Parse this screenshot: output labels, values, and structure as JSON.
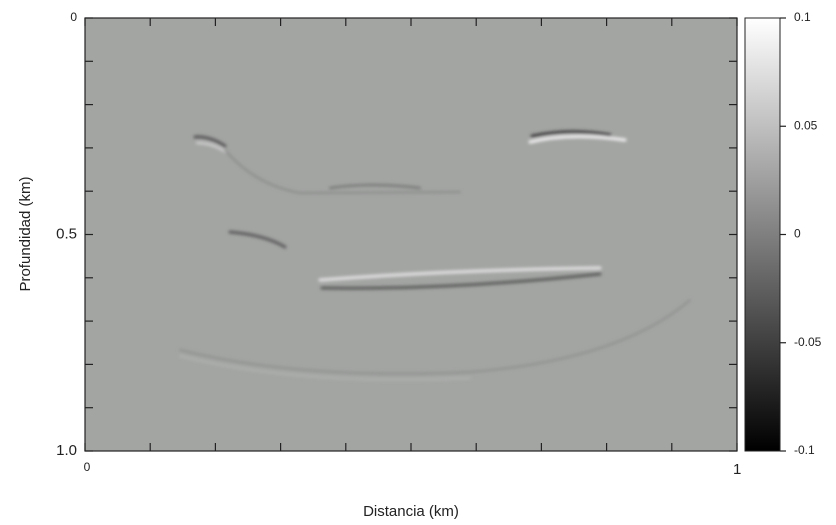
{
  "chart_data": {
    "type": "heatmap",
    "xlabel": "Distancia (km)",
    "ylabel": "Profundidad (km)",
    "xlim": [
      0,
      1
    ],
    "ylim": [
      1,
      0
    ],
    "xticks": [
      0,
      1
    ],
    "yticks": [
      0,
      0.5,
      {
        "value": 1,
        "label": "1.0"
      }
    ],
    "xticks_minor": [
      0.1,
      0.2,
      0.3,
      0.4,
      0.5,
      0.6,
      0.7,
      0.8,
      0.9
    ],
    "yticks_minor": [
      0.1,
      0.2,
      0.3,
      0.4,
      0.6,
      0.7,
      0.8,
      0.9
    ],
    "colorbar": {
      "lim": [
        -0.1,
        0.1
      ],
      "ticks": [
        0.1,
        0.05,
        0,
        -0.05,
        -0.1
      ]
    }
  }
}
